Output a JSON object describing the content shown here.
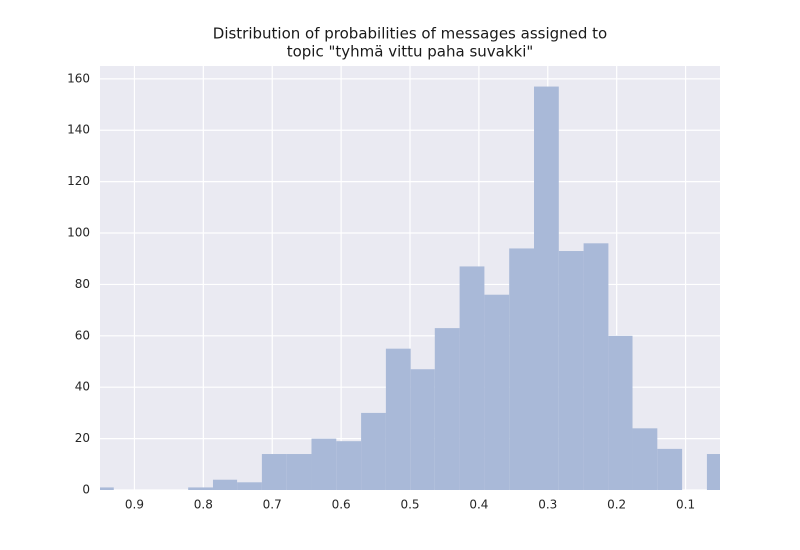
{
  "chart_data": {
    "type": "histogram",
    "title": [
      "Distribution of probabilities of messages assigned to",
      "topic \"tyhmä vittu paha suvakki\""
    ],
    "bins": [
      0.033,
      0.069,
      0.105,
      0.141,
      0.177,
      0.212,
      0.248,
      0.284,
      0.32,
      0.356,
      0.392,
      0.428,
      0.464,
      0.499,
      0.535,
      0.571,
      0.607,
      0.643,
      0.679,
      0.715,
      0.751,
      0.786,
      0.822,
      0.858,
      0.894,
      0.93,
      0.966
    ],
    "values": [
      14,
      0,
      16,
      24,
      60,
      96,
      93,
      157,
      94,
      76,
      87,
      63,
      47,
      55,
      30,
      19,
      20,
      14,
      14,
      3,
      4,
      1,
      0,
      0,
      0,
      1
    ],
    "color": "#a9b9d8",
    "xlim": [
      0.95,
      0.05
    ],
    "xticks": [
      0.9,
      0.8,
      0.7,
      0.6,
      0.5,
      0.4,
      0.3,
      0.2,
      0.1
    ],
    "ylim": [
      0,
      165
    ],
    "yticks": [
      0,
      20,
      40,
      60,
      80,
      100,
      120,
      140,
      160
    ],
    "grid": true
  }
}
